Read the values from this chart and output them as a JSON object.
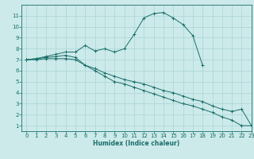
{
  "background_color": "#cceaea",
  "grid_color": "#aad4d4",
  "line_color": "#1a6e6a",
  "xlabel": "Humidex (Indice chaleur)",
  "xlim": [
    -0.5,
    23
  ],
  "ylim": [
    0.5,
    12
  ],
  "xticks": [
    0,
    1,
    2,
    3,
    4,
    5,
    6,
    7,
    8,
    9,
    10,
    11,
    12,
    13,
    14,
    15,
    16,
    17,
    18,
    19,
    20,
    21,
    22,
    23
  ],
  "yticks": [
    1,
    2,
    3,
    4,
    5,
    6,
    7,
    8,
    9,
    10,
    11
  ],
  "series": [
    {
      "x": [
        0,
        1,
        2,
        3,
        4,
        5,
        6,
        7,
        8,
        9,
        10,
        11,
        12,
        13,
        14,
        15,
        16,
        17,
        18
      ],
      "y": [
        7.0,
        7.1,
        7.3,
        7.5,
        7.7,
        7.7,
        8.3,
        7.8,
        8.0,
        7.7,
        8.0,
        9.3,
        10.8,
        11.2,
        11.3,
        10.8,
        10.2,
        9.2,
        6.5
      ]
    },
    {
      "x": [
        0,
        1,
        2,
        3,
        4,
        5,
        6,
        7,
        8,
        9,
        10,
        11,
        12,
        13,
        14,
        15,
        16,
        17,
        18,
        19,
        20,
        21,
        22,
        23
      ],
      "y": [
        7.0,
        7.1,
        7.2,
        7.3,
        7.4,
        7.2,
        6.5,
        6.2,
        5.8,
        5.5,
        5.2,
        5.0,
        4.8,
        4.5,
        4.2,
        4.0,
        3.7,
        3.4,
        3.2,
        2.8,
        2.5,
        2.3,
        2.5,
        1.0
      ]
    },
    {
      "x": [
        0,
        1,
        2,
        3,
        4,
        5,
        6,
        7,
        8,
        9,
        10,
        11,
        12,
        13,
        14,
        15,
        16,
        17,
        18,
        19,
        20,
        21,
        22,
        23
      ],
      "y": [
        7.0,
        7.0,
        7.1,
        7.1,
        7.1,
        7.0,
        6.5,
        6.0,
        5.5,
        5.0,
        4.8,
        4.5,
        4.2,
        3.9,
        3.6,
        3.3,
        3.0,
        2.8,
        2.5,
        2.2,
        1.8,
        1.5,
        1.0,
        1.0
      ]
    }
  ]
}
